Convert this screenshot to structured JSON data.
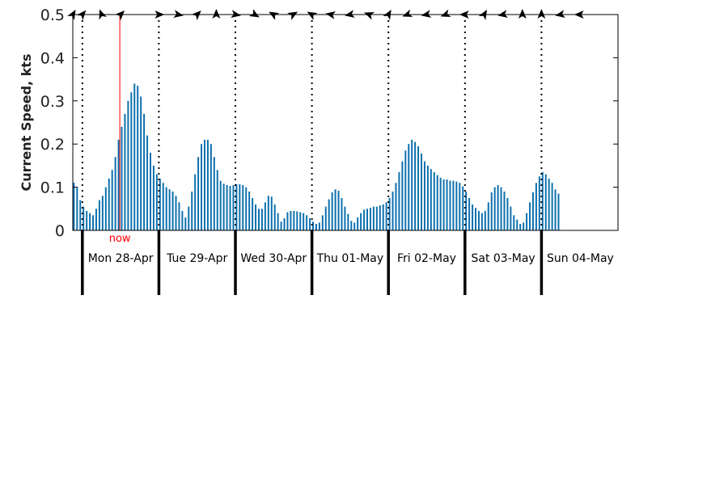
{
  "chart_data": {
    "type": "bar",
    "ylabel": "Current Speed, kts",
    "ylim": [
      0,
      0.5
    ],
    "yticks": [
      0,
      0.1,
      0.2,
      0.3,
      0.4,
      0.5
    ],
    "ytick_labels": [
      "0",
      "0.1",
      "0.2",
      "0.3",
      "0.4",
      "0.5"
    ],
    "x_start": "Sun 27-Apr 21:00",
    "x_end": "Mon 05-May 00:00",
    "interval_hours": 1,
    "bar_color": "#0b6fad",
    "now_color": "#ff0000",
    "now_label": "now",
    "now_time": "Mon 28-Apr 12:00",
    "days": [
      {
        "label": "Mon 28-Apr",
        "start": "Mon 28-Apr 00:00"
      },
      {
        "label": "Tue 29-Apr",
        "start": "Tue 29-Apr 00:00"
      },
      {
        "label": "Wed 30-Apr",
        "start": "Wed 30-Apr 00:00"
      },
      {
        "label": "Thu 01-May",
        "start": "Thu 01-May 00:00"
      },
      {
        "label": "Fri 02-May",
        "start": "Fri 02-May 00:00"
      },
      {
        "label": "Sat 03-May",
        "start": "Sat 03-May 00:00"
      },
      {
        "label": "Sun 04-May",
        "start": "Sun 04-May 00:00"
      }
    ],
    "values": [
      0.11,
      0.1,
      0.07,
      0.055,
      0.045,
      0.04,
      0.035,
      0.05,
      0.07,
      0.08,
      0.1,
      0.12,
      0.14,
      0.17,
      0.21,
      0.24,
      0.27,
      0.3,
      0.32,
      0.34,
      0.335,
      0.31,
      0.27,
      0.22,
      0.18,
      0.15,
      0.13,
      0.12,
      0.11,
      0.1,
      0.095,
      0.09,
      0.08,
      0.065,
      0.045,
      0.03,
      0.055,
      0.09,
      0.13,
      0.17,
      0.2,
      0.21,
      0.21,
      0.2,
      0.17,
      0.14,
      0.115,
      0.108,
      0.105,
      0.103,
      0.105,
      0.107,
      0.107,
      0.105,
      0.1,
      0.09,
      0.075,
      0.06,
      0.05,
      0.05,
      0.065,
      0.08,
      0.078,
      0.06,
      0.04,
      0.02,
      0.028,
      0.042,
      0.045,
      0.045,
      0.044,
      0.042,
      0.04,
      0.035,
      0.028,
      0.02,
      0.015,
      0.018,
      0.035,
      0.055,
      0.072,
      0.088,
      0.095,
      0.092,
      0.075,
      0.055,
      0.038,
      0.022,
      0.018,
      0.03,
      0.04,
      0.048,
      0.05,
      0.052,
      0.055,
      0.055,
      0.058,
      0.06,
      0.065,
      0.075,
      0.09,
      0.11,
      0.135,
      0.16,
      0.185,
      0.2,
      0.21,
      0.205,
      0.195,
      0.178,
      0.16,
      0.15,
      0.142,
      0.135,
      0.128,
      0.122,
      0.118,
      0.118,
      0.115,
      0.115,
      0.113,
      0.11,
      0.102,
      0.09,
      0.075,
      0.06,
      0.052,
      0.045,
      0.04,
      0.045,
      0.065,
      0.088,
      0.1,
      0.105,
      0.1,
      0.09,
      0.075,
      0.055,
      0.035,
      0.025,
      0.015,
      0.018,
      0.04,
      0.065,
      0.088,
      0.11,
      0.125,
      0.135,
      0.13,
      0.12,
      0.11,
      0.095,
      0.085
    ],
    "direction_markers": [
      {
        "time": "Sun 27-Apr 21:00",
        "deg": 30
      },
      {
        "time": "Mon 28-Apr 00:00",
        "deg": 40
      },
      {
        "time": "Mon 28-Apr 06:00",
        "deg": -20
      },
      {
        "time": "Mon 28-Apr 12:00",
        "deg": 45
      },
      {
        "time": "Tue 29-Apr 00:00",
        "deg": 90
      },
      {
        "time": "Tue 29-Apr 06:00",
        "deg": 100
      },
      {
        "time": "Tue 29-Apr 12:00",
        "deg": 45
      },
      {
        "time": "Tue 29-Apr 18:00",
        "deg": 0
      },
      {
        "time": "Wed 30-Apr 00:00",
        "deg": 100
      },
      {
        "time": "Wed 30-Apr 06:00",
        "deg": 120
      },
      {
        "time": "Wed 30-Apr 12:00",
        "deg": -60
      },
      {
        "time": "Wed 30-Apr 18:00",
        "deg": 60
      },
      {
        "time": "Thu 01-May 00:00",
        "deg": -60
      },
      {
        "time": "Thu 01-May 06:00",
        "deg": -80
      },
      {
        "time": "Thu 01-May 12:00",
        "deg": -100
      },
      {
        "time": "Thu 01-May 18:00",
        "deg": -70
      },
      {
        "time": "Fri 02-May 00:00",
        "deg": 30
      },
      {
        "time": "Fri 02-May 06:00",
        "deg": -110
      },
      {
        "time": "Fri 02-May 12:00",
        "deg": -100
      },
      {
        "time": "Fri 02-May 18:00",
        "deg": -110
      },
      {
        "time": "Sat 03-May 00:00",
        "deg": -90
      },
      {
        "time": "Sat 03-May 06:00",
        "deg": 30
      },
      {
        "time": "Sat 03-May 12:00",
        "deg": -100
      },
      {
        "time": "Sat 03-May 18:00",
        "deg": 0
      },
      {
        "time": "Sun 04-May 00:00",
        "deg": 0
      },
      {
        "time": "Sun 04-May 06:00",
        "deg": -100
      },
      {
        "time": "Sun 04-May 12:00",
        "deg": -90
      }
    ]
  }
}
